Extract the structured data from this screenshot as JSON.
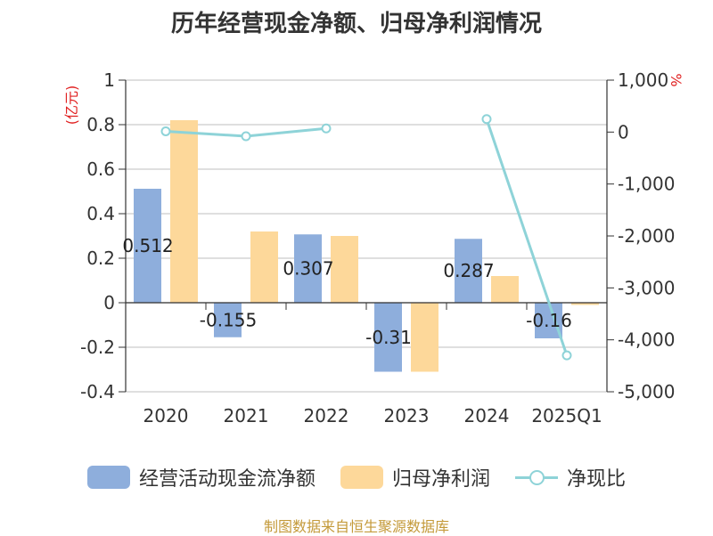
{
  "chart_data": {
    "type": "bar",
    "title": "历年经营现金净额、归母净利润情况",
    "categories": [
      "2020",
      "2021",
      "2022",
      "2023",
      "2024",
      "2025Q1"
    ],
    "series": [
      {
        "name": "经营活动现金流净额",
        "type": "bar",
        "axis": "left",
        "values": [
          0.512,
          -0.155,
          0.307,
          -0.31,
          0.287,
          -0.16
        ],
        "color": "#8eaedc"
      },
      {
        "name": "归母净利润",
        "type": "bar",
        "axis": "left",
        "values": [
          0.82,
          0.32,
          0.3,
          -0.31,
          0.12,
          -0.01
        ],
        "color": "#fdd89a"
      },
      {
        "name": "净现比",
        "type": "line",
        "axis": "right",
        "values": [
          15,
          -80,
          70,
          null,
          250,
          -4300
        ],
        "color": "#8ed3d8"
      }
    ],
    "data_labels": [
      "0.512",
      "-0.155",
      "0.307",
      "-0.31",
      "0.287",
      "-0.16"
    ],
    "left_axis": {
      "unit": "(亿元)",
      "ylim": [
        -0.4,
        1
      ],
      "ticks": [
        "1",
        "0.8",
        "0.6",
        "0.4",
        "0.2",
        "0",
        "-0.2",
        "-0.4"
      ]
    },
    "right_axis": {
      "unit": "%",
      "ylim": [
        -5000,
        1000
      ],
      "ticks": [
        "1,000",
        "0",
        "-1,000",
        "-2,000",
        "-3,000",
        "-4,000",
        "-5,000"
      ]
    },
    "grid": true,
    "legend_position": "bottom"
  },
  "footer": "制图数据来自恒生聚源数据库"
}
